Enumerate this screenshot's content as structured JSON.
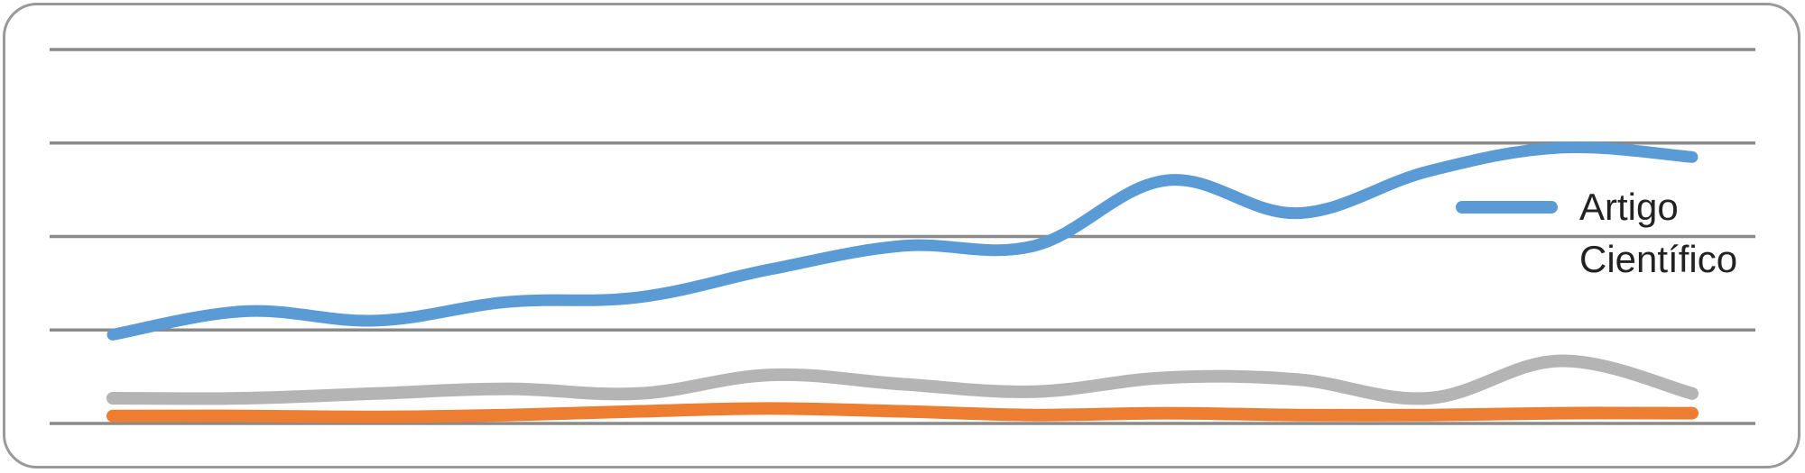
{
  "chart_data": {
    "type": "line",
    "title": "",
    "xlabel": "",
    "ylabel": "",
    "grid": true,
    "ylim": [
      0,
      4
    ],
    "y_gridlines": [
      0,
      1,
      2,
      3,
      4
    ],
    "legend_position": "right",
    "x_count": 13,
    "series": [
      {
        "name": "Artigo Científico",
        "color": "#5b9bd5",
        "values": [
          0.95,
          1.2,
          1.1,
          1.3,
          1.35,
          1.65,
          1.9,
          1.9,
          2.6,
          2.25,
          2.7,
          2.95,
          2.85
        ]
      },
      {
        "color": "#b4b4b4",
        "values": [
          0.27,
          0.27,
          0.32,
          0.37,
          0.32,
          0.52,
          0.42,
          0.34,
          0.49,
          0.47,
          0.27,
          0.67,
          0.32
        ]
      },
      {
        "color": "#ed7d31",
        "values": [
          0.08,
          0.08,
          0.07,
          0.09,
          0.13,
          0.16,
          0.13,
          0.09,
          0.11,
          0.09,
          0.09,
          0.11,
          0.11
        ]
      }
    ],
    "legend": [
      {
        "line1": "Artigo",
        "line2": "Científico",
        "color": "#5b9bd5"
      }
    ]
  }
}
